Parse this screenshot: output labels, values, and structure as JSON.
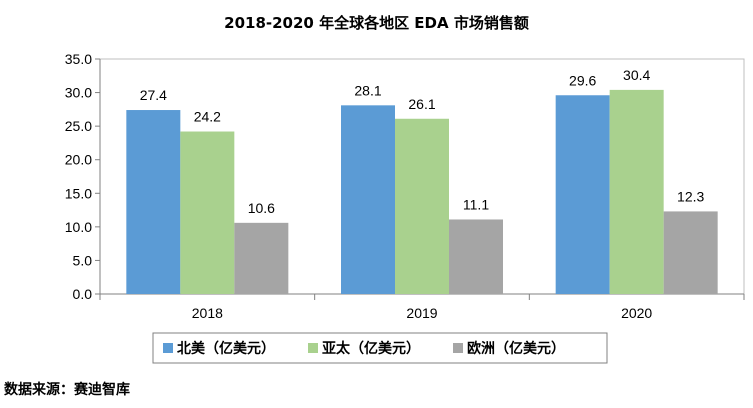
{
  "chart_data": {
    "type": "bar",
    "title": "2018-2020 年全球各地区 EDA 市场销售额",
    "categories": [
      "2018",
      "2019",
      "2020"
    ],
    "series": [
      {
        "name": "北美（亿美元）",
        "values": [
          27.4,
          28.1,
          29.6
        ],
        "color": "#5B9BD5"
      },
      {
        "name": "亚太（亿美元）",
        "values": [
          24.2,
          26.1,
          30.4
        ],
        "color": "#A9D18E"
      },
      {
        "name": "欧洲（亿美元）",
        "values": [
          10.6,
          11.1,
          12.3
        ],
        "color": "#A5A5A5"
      }
    ],
    "yticks": [
      "0.0",
      "5.0",
      "10.0",
      "15.0",
      "20.0",
      "25.0",
      "30.0",
      "35.0"
    ],
    "ylim": [
      0,
      35
    ],
    "xlabel": "",
    "ylabel": "",
    "legend_position": "bottom",
    "data_labels": true
  },
  "source_note": "数据来源：赛迪智库"
}
